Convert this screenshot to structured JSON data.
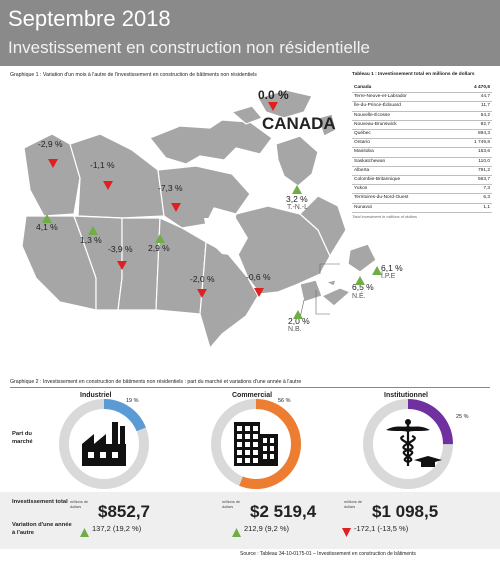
{
  "header": {
    "title": "Septembre 2018",
    "subtitle": "Investissement en construction non résidentielle"
  },
  "graph1": {
    "caption": "Graphique 1 : Variation d'un mois à l'autre de l'investissement en construction de bâtiments non résidentiels",
    "canada": {
      "pct": "0.0 %",
      "name": "CANADA"
    },
    "regions": [
      {
        "pct": "-2,9 %",
        "dir": "down",
        "abbr": ""
      },
      {
        "pct": "-1,1 %",
        "dir": "down",
        "abbr": ""
      },
      {
        "pct": "-7,3 %",
        "dir": "down",
        "abbr": ""
      },
      {
        "pct": "4,1 %",
        "dir": "up",
        "abbr": ""
      },
      {
        "pct": "1,3 %",
        "dir": "up",
        "abbr": ""
      },
      {
        "pct": "-3,9 %",
        "dir": "down",
        "abbr": ""
      },
      {
        "pct": "2,9 %",
        "dir": "up",
        "abbr": ""
      },
      {
        "pct": "-2,0 %",
        "dir": "down",
        "abbr": ""
      },
      {
        "pct": "-0,6 %",
        "dir": "down",
        "abbr": ""
      },
      {
        "pct": "3,2 %",
        "dir": "up",
        "abbr": "T.-N.-L"
      },
      {
        "pct": "6,1 %",
        "dir": "up",
        "abbr": "Î.P.E"
      },
      {
        "pct": "6,5 %",
        "dir": "up",
        "abbr": "N.É."
      },
      {
        "pct": "2,0 %",
        "dir": "up",
        "abbr": "N.B."
      }
    ]
  },
  "table1": {
    "title": "Tableau 1 : Investissement total en millions de dollars",
    "rows": [
      {
        "name": "Canada",
        "value": "4 470,6"
      },
      {
        "name": "Terre-Neuve-et-Labrador",
        "value": "44,7"
      },
      {
        "name": "Île-du-Prince-Édouard",
        "value": "11,7"
      },
      {
        "name": "Nouvelle-Écosse",
        "value": "54,2"
      },
      {
        "name": "Nouveau-Brunswick",
        "value": "82,7"
      },
      {
        "name": "Québec",
        "value": "894,3"
      },
      {
        "name": "Ontario",
        "value": "1 749,8"
      },
      {
        "name": "Manitoba",
        "value": "153,6"
      },
      {
        "name": "Saskatchewan",
        "value": "110,0"
      },
      {
        "name": "Alberta",
        "value": "791,2"
      },
      {
        "name": "Colombie-Britannique",
        "value": "563,7"
      },
      {
        "name": "Yukon",
        "value": "7,3"
      },
      {
        "name": "Territoires-du-Nord-Ouest",
        "value": "6,3"
      },
      {
        "name": "Nunavut",
        "value": "1,1"
      }
    ],
    "note": "Total investment in millions of dollars"
  },
  "graph2": {
    "caption": "Graphique 2 : Investissement en construction de bâtiments non résidentiels : part du marché et variations d'une année à l'autre",
    "share_label": "Part du marché",
    "sectors": [
      {
        "title": "Industriel",
        "share_label": "19 %",
        "share": 0.19,
        "color": "#5b9bd5",
        "icon": "factory-icon",
        "unit": "millions de dollars",
        "total": "$852,7",
        "change": "137,2 (19,2 %)",
        "dir": "up"
      },
      {
        "title": "Commercial",
        "share_label": "56 %",
        "share": 0.56,
        "color": "#ed7d31",
        "icon": "office-building-icon",
        "unit": "millions de dollars",
        "total": "$2 519,4",
        "change": "212,9 (9,2 %)",
        "dir": "up"
      },
      {
        "title": "Institutionnel",
        "share_label": "25 %",
        "share": 0.25,
        "color": "#7030a0",
        "icon": "caduceus-graduation-icon",
        "unit": "millions de dollars",
        "total": "$1 098,5",
        "change": "-172,1 (-13,5 %)",
        "dir": "down"
      }
    ]
  },
  "bottom": {
    "total_label": "Investissement total",
    "change_label": "Variation d'une année à l'autre"
  },
  "source": "Source : Tableau 34-10-0175-01 – Investissement en construction de bâtiments",
  "colors": {
    "up": "#70ad47",
    "down": "#e02020",
    "header": "#8a8a8a"
  }
}
